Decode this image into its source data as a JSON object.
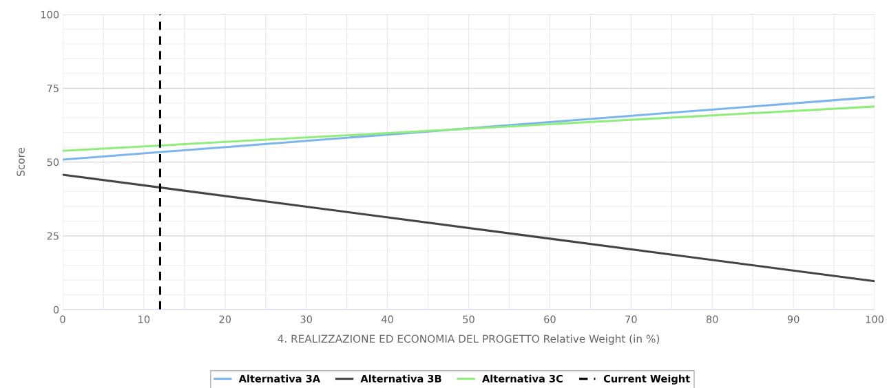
{
  "chart_data": {
    "type": "line",
    "xlabel": "4. REALIZZAZIONE ED ECONOMIA DEL PROGETTO Relative Weight (in %)",
    "ylabel": "Score",
    "x": [
      0,
      100
    ],
    "series": [
      {
        "name": "Alternativa 3A",
        "color": "#7cb5ec",
        "values": [
          50.8,
          72.0
        ]
      },
      {
        "name": "Alternativa 3B",
        "color": "#434348",
        "values": [
          45.7,
          9.6
        ]
      },
      {
        "name": "Alternativa 3C",
        "color": "#90ed7d",
        "values": [
          53.8,
          68.8
        ]
      }
    ],
    "ref_lines": [
      {
        "axis": "x",
        "value": 12,
        "label": "Current Weight",
        "color": "#000000",
        "line_style": "dashed"
      }
    ],
    "xlim": [
      0,
      100
    ],
    "xticks": [
      0,
      10,
      20,
      30,
      40,
      50,
      60,
      70,
      80,
      90,
      100
    ],
    "ylim": [
      0,
      100
    ],
    "yticks": [
      0,
      25,
      50,
      75,
      100
    ],
    "grid": true,
    "legend": "bottom",
    "marker": "none",
    "line_style": "solid"
  }
}
